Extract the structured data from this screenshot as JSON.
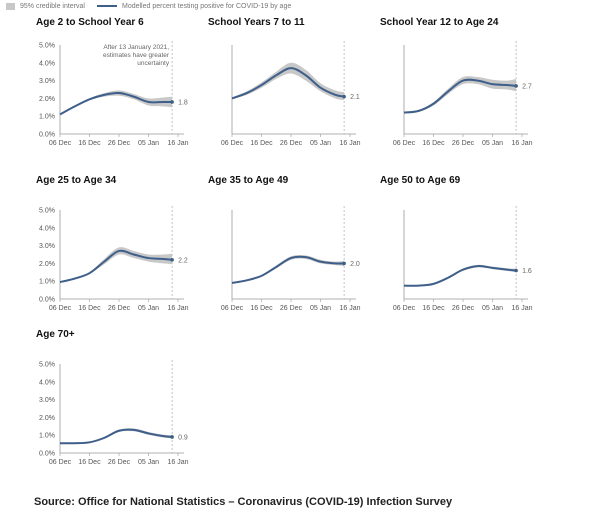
{
  "legend": {
    "interval_label": "95% credible interval",
    "line_label": "Modelled percent testing positive for COVID-19 by age"
  },
  "source": "Source: Office for National Statistics – Coronavirus (COVID-19) Infection Survey",
  "colors": {
    "line": "#3e5f8a",
    "band": "#c8c8c8",
    "axis": "#999999"
  },
  "chart_data": [
    {
      "type": "line",
      "title": "Age 2 to School Year 6",
      "x": [
        "06 Dec",
        "11 Dec",
        "16 Dec",
        "21 Dec",
        "26 Dec",
        "31 Dec",
        "05 Jan",
        "10 Jan",
        "13 Jan"
      ],
      "values": [
        1.1,
        1.55,
        1.95,
        2.2,
        2.3,
        2.1,
        1.8,
        1.8,
        1.8
      ],
      "lower": [
        1.05,
        1.5,
        1.9,
        2.1,
        2.15,
        1.95,
        1.6,
        1.55,
        1.5
      ],
      "upper": [
        1.15,
        1.6,
        2.0,
        2.3,
        2.45,
        2.25,
        2.0,
        2.05,
        2.1
      ],
      "end_label": "1.8",
      "annotation": [
        "After 13 January 2021,",
        "estimates have greater",
        "uncertainty"
      ],
      "xticks": [
        "06 Dec",
        "16 Dec",
        "26 Dec",
        "05 Jan",
        "16 Jan"
      ],
      "yticks": [
        "0.0%",
        "1.0%",
        "2.0%",
        "3.0%",
        "4.0%",
        "5.0%"
      ],
      "ylim": [
        0,
        5
      ]
    },
    {
      "type": "line",
      "title": "School Years 7 to 11",
      "x": [
        "06 Dec",
        "11 Dec",
        "16 Dec",
        "21 Dec",
        "26 Dec",
        "31 Dec",
        "05 Jan",
        "10 Jan",
        "13 Jan"
      ],
      "values": [
        2.0,
        2.3,
        2.75,
        3.3,
        3.7,
        3.3,
        2.6,
        2.2,
        2.1
      ],
      "lower": [
        1.95,
        2.2,
        2.6,
        3.1,
        3.4,
        3.0,
        2.4,
        2.0,
        1.9
      ],
      "upper": [
        2.05,
        2.4,
        2.9,
        3.5,
        4.0,
        3.6,
        2.85,
        2.45,
        2.35
      ],
      "end_label": "2.1",
      "xticks": [
        "06 Dec",
        "16 Dec",
        "26 Dec",
        "05 Jan",
        "16 Jan"
      ],
      "yticks": [],
      "ylim": [
        0,
        5
      ]
    },
    {
      "type": "line",
      "title": "School Year 12 to Age 24",
      "x": [
        "06 Dec",
        "11 Dec",
        "16 Dec",
        "21 Dec",
        "26 Dec",
        "31 Dec",
        "05 Jan",
        "10 Jan",
        "13 Jan"
      ],
      "values": [
        1.2,
        1.3,
        1.7,
        2.4,
        3.0,
        3.0,
        2.8,
        2.75,
        2.7
      ],
      "lower": [
        1.15,
        1.25,
        1.6,
        2.25,
        2.8,
        2.8,
        2.55,
        2.5,
        2.4
      ],
      "upper": [
        1.25,
        1.35,
        1.8,
        2.55,
        3.2,
        3.2,
        3.05,
        3.0,
        3.1
      ],
      "end_label": "2.7",
      "xticks": [
        "06 Dec",
        "16 Dec",
        "26 Dec",
        "05 Jan",
        "16 Jan"
      ],
      "yticks": [],
      "ylim": [
        0,
        5
      ]
    },
    {
      "type": "line",
      "title": "Age 25 to Age 34",
      "x": [
        "06 Dec",
        "11 Dec",
        "16 Dec",
        "21 Dec",
        "26 Dec",
        "31 Dec",
        "05 Jan",
        "10 Jan",
        "13 Jan"
      ],
      "values": [
        0.95,
        1.15,
        1.45,
        2.1,
        2.7,
        2.5,
        2.3,
        2.25,
        2.2
      ],
      "lower": [
        0.9,
        1.1,
        1.4,
        1.95,
        2.5,
        2.3,
        2.1,
        2.0,
        1.95
      ],
      "upper": [
        1.0,
        1.2,
        1.5,
        2.25,
        2.9,
        2.7,
        2.5,
        2.5,
        2.55
      ],
      "end_label": "2.2",
      "xticks": [
        "06 Dec",
        "16 Dec",
        "26 Dec",
        "05 Jan",
        "16 Jan"
      ],
      "yticks": [
        "0.0%",
        "1.0%",
        "2.0%",
        "3.0%",
        "4.0%",
        "5.0%"
      ],
      "ylim": [
        0,
        5
      ]
    },
    {
      "type": "line",
      "title": "Age 35 to Age 49",
      "x": [
        "06 Dec",
        "11 Dec",
        "16 Dec",
        "21 Dec",
        "26 Dec",
        "31 Dec",
        "05 Jan",
        "10 Jan",
        "13 Jan"
      ],
      "values": [
        0.9,
        1.05,
        1.3,
        1.8,
        2.3,
        2.35,
        2.1,
        2.0,
        2.0
      ],
      "lower": [
        0.87,
        1.0,
        1.25,
        1.72,
        2.2,
        2.25,
        2.0,
        1.9,
        1.85
      ],
      "upper": [
        0.93,
        1.1,
        1.35,
        1.88,
        2.4,
        2.45,
        2.2,
        2.1,
        2.15
      ],
      "end_label": "2.0",
      "xticks": [
        "06 Dec",
        "16 Dec",
        "26 Dec",
        "05 Jan",
        "16 Jan"
      ],
      "yticks": [],
      "ylim": [
        0,
        5
      ]
    },
    {
      "type": "line",
      "title": "Age 50 to Age 69",
      "x": [
        "06 Dec",
        "11 Dec",
        "16 Dec",
        "21 Dec",
        "26 Dec",
        "31 Dec",
        "05 Jan",
        "10 Jan",
        "13 Jan"
      ],
      "values": [
        0.75,
        0.75,
        0.85,
        1.2,
        1.65,
        1.85,
        1.75,
        1.65,
        1.6
      ],
      "lower": [
        0.73,
        0.73,
        0.82,
        1.15,
        1.58,
        1.78,
        1.68,
        1.57,
        1.5
      ],
      "upper": [
        0.77,
        0.77,
        0.88,
        1.25,
        1.72,
        1.92,
        1.82,
        1.73,
        1.7
      ],
      "end_label": "1.6",
      "xticks": [
        "06 Dec",
        "16 Dec",
        "26 Dec",
        "05 Jan",
        "16 Jan"
      ],
      "yticks": [],
      "ylim": [
        0,
        5
      ]
    },
    {
      "type": "line",
      "title": "Age 70+",
      "x": [
        "06 Dec",
        "11 Dec",
        "16 Dec",
        "21 Dec",
        "26 Dec",
        "31 Dec",
        "05 Jan",
        "10 Jan",
        "13 Jan"
      ],
      "values": [
        0.55,
        0.55,
        0.6,
        0.85,
        1.25,
        1.3,
        1.1,
        0.95,
        0.9
      ],
      "lower": [
        0.52,
        0.52,
        0.57,
        0.8,
        1.18,
        1.22,
        1.02,
        0.87,
        0.82
      ],
      "upper": [
        0.58,
        0.58,
        0.63,
        0.9,
        1.32,
        1.38,
        1.18,
        1.03,
        1.0
      ],
      "end_label": "0.9",
      "xticks": [
        "06 Dec",
        "16 Dec",
        "26 Dec",
        "05 Jan",
        "16 Jan"
      ],
      "yticks": [
        "0.0%",
        "1.0%",
        "2.0%",
        "3.0%",
        "4.0%",
        "5.0%"
      ],
      "ylim": [
        0,
        5
      ]
    }
  ]
}
